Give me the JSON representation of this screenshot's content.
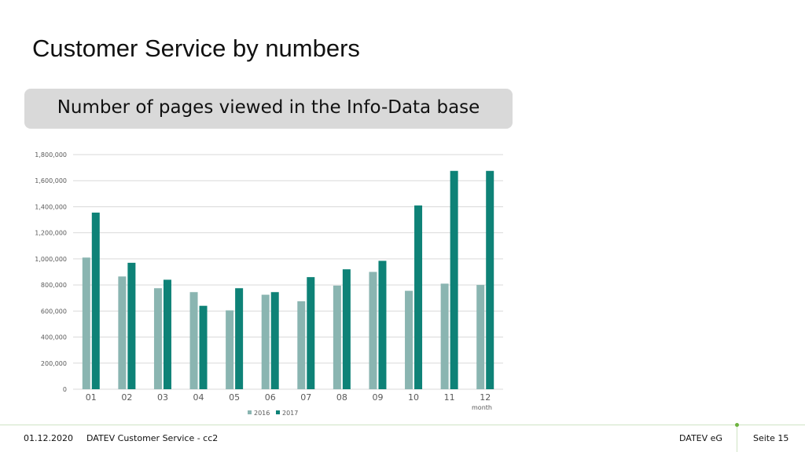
{
  "slide": {
    "title": "Customer Service by numbers",
    "banner": "Number of pages viewed in the Info-Data base"
  },
  "footer": {
    "date": "01.12.2020",
    "center": "DATEV Customer Service - cc2",
    "company": "DATEV eG",
    "page": "Seite 15"
  },
  "colors": {
    "series_2016": "#8ab5b1",
    "series_2017": "#0e8277",
    "gridline": "#d9d9d9",
    "axis_text": "#595959"
  },
  "chart_data": {
    "type": "bar",
    "categories": [
      "01",
      "02",
      "03",
      "04",
      "05",
      "06",
      "07",
      "08",
      "09",
      "10",
      "11",
      "12"
    ],
    "series": [
      {
        "name": "2016",
        "values": [
          1010000,
          865000,
          775000,
          745000,
          605000,
          725000,
          675000,
          795000,
          900000,
          755000,
          810000,
          800000
        ]
      },
      {
        "name": "2017",
        "values": [
          1355000,
          970000,
          840000,
          640000,
          775000,
          745000,
          860000,
          920000,
          985000,
          1410000,
          1675000,
          1675000
        ]
      }
    ],
    "yticks": [
      "0",
      "200,000",
      "400,000",
      "600,000",
      "800,000",
      "1,000,000",
      "1,200,000",
      "1,400,000",
      "1,600,000",
      "1,800,000"
    ],
    "ylim": [
      0,
      1800000
    ],
    "xlabel": "month",
    "ylabel": "",
    "title": "",
    "grid": true,
    "legend": "bottom"
  }
}
